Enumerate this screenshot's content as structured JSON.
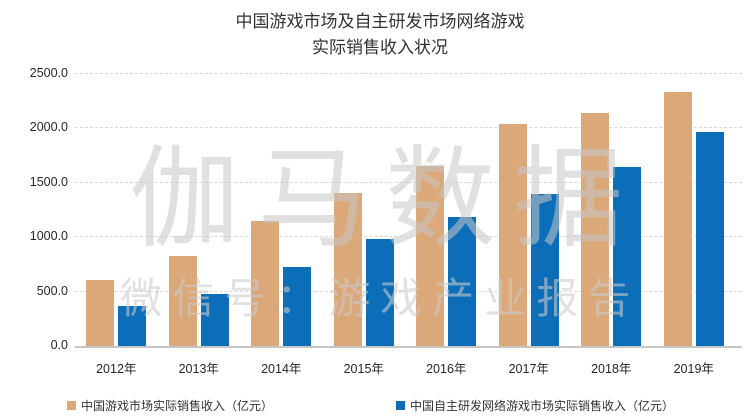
{
  "title": {
    "line1": "中国游戏市场及自主研发市场网络游戏",
    "line2": "实际销售收入状况"
  },
  "watermark": {
    "line1": "伽马数据",
    "line2": "微信号：游戏产业报告"
  },
  "legend": [
    {
      "label": "中国游戏市场实际销售收入（亿元）",
      "color": "#dba87a"
    },
    {
      "label": "中国自主研发网络游戏市场实际销售收入（亿元）",
      "color": "#0c6eb8"
    }
  ],
  "chart_data": {
    "type": "bar",
    "title": "中国游戏市场及自主研发市场网络游戏实际销售收入状况",
    "categories": [
      "2012年",
      "2013年",
      "2014年",
      "2015年",
      "2016年",
      "2017年",
      "2018年",
      "2019年"
    ],
    "series": [
      {
        "name": "中国游戏市场实际销售收入（亿元）",
        "color": "#dba87a",
        "values": [
          602.8,
          831.7,
          1144.8,
          1407.0,
          1655.7,
          2036.1,
          2144.4,
          2330.2
        ]
      },
      {
        "name": "中国自主研发网络游戏市场实际销售收入（亿元）",
        "color": "#0c6eb8",
        "values": [
          368.1,
          476.6,
          726.6,
          986.7,
          1182.5,
          1397.4,
          1643.8,
          1965.0
        ]
      }
    ],
    "xlabel": "",
    "ylabel": "",
    "ylim": [
      0,
      2500
    ],
    "ytick_step": 500,
    "ytick_labels": [
      "0.0",
      "500.0",
      "1000.0",
      "1500.0",
      "2000.0",
      "2500.0"
    ],
    "grid": "horizontal-dashed",
    "legend_position": "bottom"
  }
}
